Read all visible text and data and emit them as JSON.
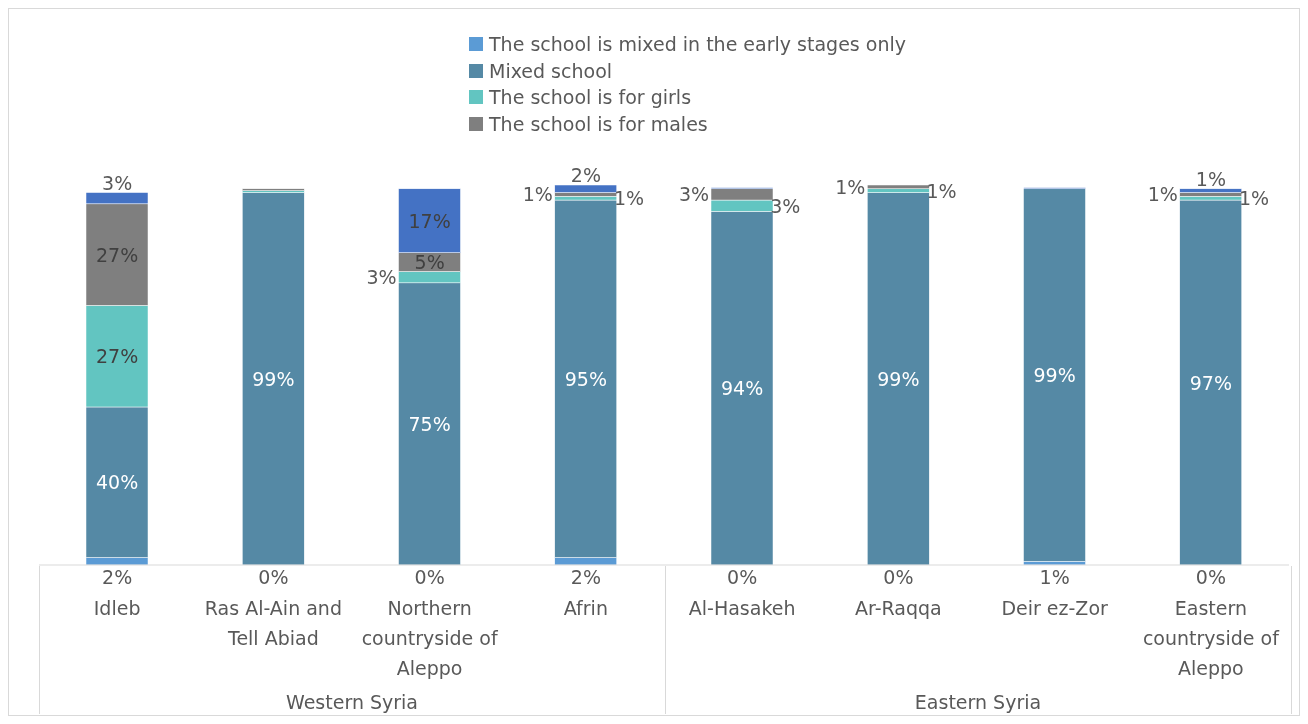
{
  "chart_data": {
    "type": "bar",
    "stacked": true,
    "legend": "top",
    "ylim": [
      0,
      101
    ],
    "tick_labels": "x",
    "categories": [
      "Idleb",
      "Ras Al-Ain and Tell Abiad",
      "Northern countryside of Aleppo",
      "Afrin",
      "Al-Hasakeh",
      "Ar-Raqqa",
      "Deir  ez-Zor",
      "Eastern countryside of Aleppo"
    ],
    "series": [
      {
        "name": "The school is mixed in the early stages only",
        "color": "#5b9bd5",
        "values": [
          2,
          0,
          0,
          2,
          0,
          0,
          1,
          0
        ],
        "value_labels": [
          "2%",
          "0%",
          "0%",
          "2%",
          "0%",
          "0%",
          "1%",
          "0%"
        ]
      },
      {
        "name": "Mixed school",
        "color": "#5589a5",
        "values": [
          40,
          99,
          75,
          95,
          94,
          99,
          99,
          97
        ],
        "value_labels": [
          "40%",
          "99%",
          "75%",
          "95%",
          "94%",
          "99%",
          "99%",
          "97%"
        ]
      },
      {
        "name": "The school is for girls",
        "color": "#62c5c1",
        "values": [
          27,
          0.5,
          3,
          1,
          3,
          1,
          null,
          1
        ],
        "value_labels": [
          "27%",
          null,
          "3%",
          "1%",
          "3%",
          "1%",
          null,
          "1%"
        ]
      },
      {
        "name": "The school is for males",
        "color": "#7f7f7f",
        "values": [
          27,
          0.5,
          5,
          1,
          3,
          1,
          null,
          1
        ],
        "value_labels": [
          "27%",
          null,
          "5%",
          "1%",
          "3%",
          "1%",
          null,
          "1%"
        ]
      },
      {
        "color": "#4472c4",
        "values": [
          3,
          null,
          17,
          2,
          0.3,
          null,
          0.3,
          1
        ],
        "value_labels": [
          "3%",
          null,
          "17%",
          "2%",
          null,
          null,
          null,
          "1%"
        ]
      }
    ],
    "annotations": [
      "Western Syria",
      "Eastern Syria"
    ]
  }
}
